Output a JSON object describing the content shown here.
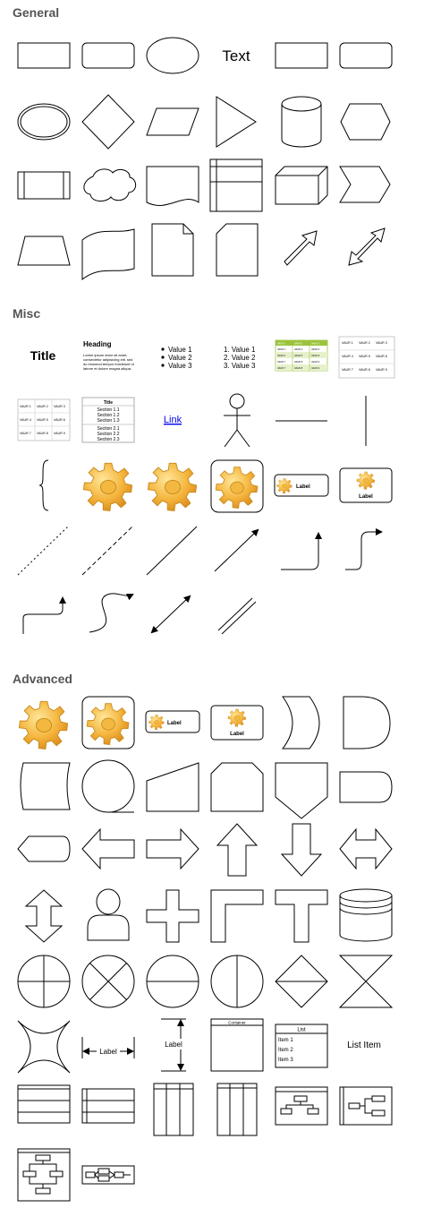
{
  "sections": [
    {
      "title": "General"
    },
    {
      "title": "Misc"
    },
    {
      "title": "Advanced"
    }
  ],
  "general": {
    "text_shape_label": "Text"
  },
  "misc": {
    "title_label": "Title",
    "heading": {
      "title": "Heading",
      "body_line1": "Lorem ipsum dolor sit amet,",
      "body_line2": "consectetur adipisicing elit, sed",
      "body_line3": "do eiusmod tempor incididunt ut",
      "body_line4": "labore et dolore magna aliqua."
    },
    "bullet_list": [
      "Value 1",
      "Value 2",
      "Value 3"
    ],
    "numbered_list": [
      "1.  Value 1",
      "2.  Value 2",
      "3.  Value 3"
    ],
    "table_cells": [
      "VAUR 1",
      "VAUR 2",
      "VAUR 3",
      "VAUR 4",
      "VAUR 5",
      "VAUR 6",
      "VAUR 7",
      "VAUR 8",
      "VAUR 9"
    ],
    "section_table": {
      "title": "Title",
      "group1": [
        "Section 1.1",
        "Section 1.2",
        "Section 1.3"
      ],
      "group2": [
        "Section 2.1",
        "Section 2.2",
        "Section 2.3"
      ]
    },
    "link_label": "Link",
    "gear_label_small": "Label",
    "gear_label_big": "Label"
  },
  "advanced": {
    "gear_label_small": "Label",
    "gear_label_big": "Label",
    "horizontal_dimension_label": "Label",
    "vertical_dimension_label": "Label",
    "container_label": "Container",
    "list": {
      "title": "List",
      "items": [
        "Item 1",
        "Item 2",
        "Item 3"
      ]
    },
    "list_item_label": "List Item"
  },
  "colors": {
    "section_title": "#555555",
    "table_header_green": "#9ac43c",
    "link_blue": "#0000ee",
    "gear_orange": "#f0a828"
  }
}
